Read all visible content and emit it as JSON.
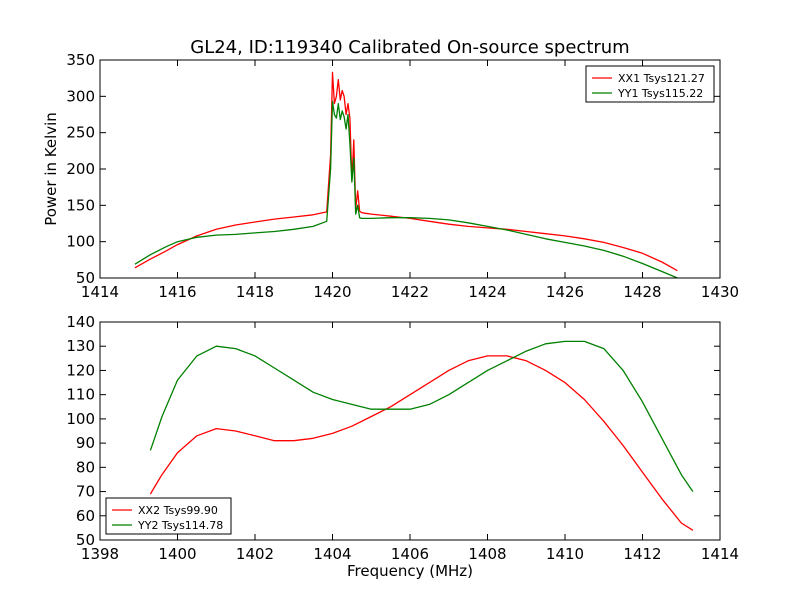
{
  "figure": {
    "title": "GL24, ID:119340 Calibrated On-source spectrum"
  },
  "chart_data": [
    {
      "type": "line",
      "title": "GL24, ID:119340 Calibrated On-source spectrum",
      "xlabel": "",
      "ylabel": "Power in Kelvin",
      "xlim": [
        1414,
        1430
      ],
      "ylim": [
        50,
        350
      ],
      "xticks": [
        "1414",
        "1416",
        "1418",
        "1420",
        "1422",
        "1424",
        "1426",
        "1428",
        "1430"
      ],
      "yticks": [
        "50",
        "100",
        "150",
        "200",
        "250",
        "300",
        "350"
      ],
      "grid": false,
      "legend_position": "top-right",
      "series": [
        {
          "name": "XX1 Tsys121.27",
          "color": "#ff0000",
          "x": [
            1414.9,
            1415.3,
            1415.7,
            1416.0,
            1416.5,
            1417.0,
            1417.5,
            1418.0,
            1418.5,
            1419.0,
            1419.5,
            1419.85,
            1419.95,
            1420.0,
            1420.05,
            1420.1,
            1420.15,
            1420.2,
            1420.25,
            1420.3,
            1420.35,
            1420.4,
            1420.45,
            1420.5,
            1420.55,
            1420.6,
            1420.65,
            1420.7,
            1420.75,
            1420.85,
            1421.0,
            1421.5,
            1422.0,
            1422.5,
            1423.0,
            1423.5,
            1424.0,
            1424.5,
            1425.0,
            1425.5,
            1426.0,
            1426.5,
            1427.0,
            1427.5,
            1428.0,
            1428.5,
            1428.9
          ],
          "y": [
            64,
            76,
            87,
            96,
            108,
            117,
            123,
            127,
            131,
            134,
            137,
            141,
            220,
            333,
            290,
            300,
            323,
            295,
            308,
            300,
            275,
            290,
            270,
            185,
            240,
            145,
            170,
            142,
            140,
            139,
            138,
            135,
            132,
            128,
            124,
            121,
            119,
            117,
            114,
            111,
            108,
            104,
            99,
            92,
            84,
            72,
            60
          ]
        },
        {
          "name": "YY1 Tsys115.22",
          "color": "#008000",
          "x": [
            1414.9,
            1415.3,
            1415.7,
            1416.0,
            1416.5,
            1417.0,
            1417.5,
            1418.0,
            1418.5,
            1419.0,
            1419.5,
            1419.85,
            1419.95,
            1420.0,
            1420.05,
            1420.1,
            1420.15,
            1420.2,
            1420.25,
            1420.3,
            1420.35,
            1420.4,
            1420.45,
            1420.5,
            1420.55,
            1420.6,
            1420.65,
            1420.7,
            1420.75,
            1420.85,
            1421.0,
            1421.5,
            1422.0,
            1422.5,
            1423.0,
            1423.5,
            1424.0,
            1424.5,
            1425.0,
            1425.5,
            1426.0,
            1426.5,
            1427.0,
            1427.5,
            1428.0,
            1428.5,
            1428.9
          ],
          "y": [
            69,
            82,
            93,
            100,
            106,
            109,
            110,
            112,
            114,
            117,
            121,
            128,
            200,
            293,
            275,
            270,
            290,
            268,
            280,
            272,
            255,
            275,
            235,
            182,
            215,
            138,
            150,
            133,
            132,
            132,
            132,
            133,
            133,
            132,
            130,
            126,
            121,
            116,
            110,
            104,
            99,
            94,
            88,
            80,
            70,
            59,
            50
          ]
        }
      ]
    },
    {
      "type": "line",
      "title": "",
      "xlabel": "Frequency (MHz)",
      "ylabel": "",
      "xlim": [
        1398,
        1414
      ],
      "ylim": [
        50,
        140
      ],
      "xticks": [
        "1398",
        "1400",
        "1402",
        "1404",
        "1406",
        "1408",
        "1410",
        "1412",
        "1414"
      ],
      "yticks": [
        "50",
        "60",
        "70",
        "80",
        "90",
        "100",
        "110",
        "120",
        "130",
        "140"
      ],
      "grid": false,
      "legend_position": "bottom-left",
      "series": [
        {
          "name": "XX2 Tsys99.90",
          "color": "#ff0000",
          "x": [
            1399.3,
            1399.6,
            1400.0,
            1400.5,
            1401.0,
            1401.5,
            1402.0,
            1402.5,
            1403.0,
            1403.5,
            1404.0,
            1404.5,
            1405.0,
            1405.5,
            1406.0,
            1406.5,
            1407.0,
            1407.5,
            1408.0,
            1408.5,
            1409.0,
            1409.5,
            1410.0,
            1410.5,
            1411.0,
            1411.5,
            1412.0,
            1412.5,
            1413.0,
            1413.3
          ],
          "y": [
            69,
            77,
            86,
            93,
            96,
            95,
            93,
            91,
            91,
            92,
            94,
            97,
            101,
            105,
            110,
            115,
            120,
            124,
            126,
            126,
            124,
            120,
            115,
            108,
            99,
            89,
            78,
            67,
            57,
            54
          ]
        },
        {
          "name": "YY2 Tsys114.78",
          "color": "#008000",
          "x": [
            1399.3,
            1399.6,
            1400.0,
            1400.5,
            1401.0,
            1401.5,
            1402.0,
            1402.5,
            1403.0,
            1403.5,
            1404.0,
            1404.5,
            1405.0,
            1405.5,
            1406.0,
            1406.5,
            1407.0,
            1407.5,
            1408.0,
            1408.5,
            1409.0,
            1409.5,
            1410.0,
            1410.5,
            1411.0,
            1411.5,
            1412.0,
            1412.5,
            1413.0,
            1413.3
          ],
          "y": [
            87,
            101,
            116,
            126,
            130,
            129,
            126,
            121,
            116,
            111,
            108,
            106,
            104,
            104,
            104,
            106,
            110,
            115,
            120,
            124,
            128,
            131,
            132,
            132,
            129,
            120,
            107,
            92,
            77,
            70
          ]
        }
      ]
    }
  ]
}
